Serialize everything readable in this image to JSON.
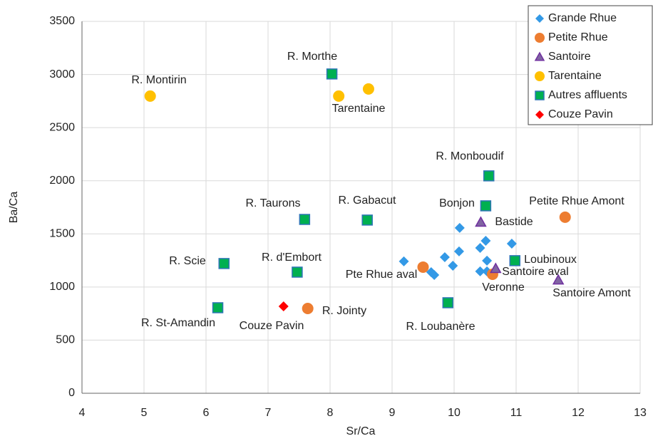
{
  "chart_data": {
    "type": "scatter",
    "x_label": "Sr/Ca",
    "y_label": "Ba/Ca",
    "xlim": [
      4,
      13
    ],
    "xticks": [
      4,
      5,
      6,
      7,
      8,
      9,
      10,
      11,
      12,
      13
    ],
    "ylim": [
      0,
      3500
    ],
    "yticks": [
      0,
      500,
      1000,
      1500,
      2000,
      2500,
      3000,
      3500
    ],
    "grid": true,
    "legend": "top-right",
    "series": [
      {
        "name": "Grande Rhue",
        "color": "#3399e6",
        "marker": "diamond",
        "x": [
          9.19,
          9.63,
          9.68,
          9.85,
          9.98,
          10.09,
          10.08,
          10.42,
          10.51,
          10.53,
          10.42,
          10.53,
          10.93
        ],
        "values": [
          1241,
          1140,
          1113,
          1281,
          1200,
          1556,
          1335,
          1368,
          1435,
          1248,
          1147,
          1147,
          1408
        ]
      },
      {
        "name": "Petite Rhue",
        "color": "#ed7d31",
        "marker": "circle",
        "x": [
          9.5,
          10.62,
          11.79,
          7.64
        ],
        "values": [
          1187,
          1120,
          1657,
          798
        ]
      },
      {
        "name": "Santoire",
        "color": "#8064a2",
        "marker": "triangle",
        "x": [
          10.43,
          10.67,
          11.68
        ],
        "values": [
          1610,
          1174,
          1066
        ]
      },
      {
        "name": "Tarentaine",
        "color": "#ffc000",
        "marker": "circle",
        "x": [
          5.1,
          8.14,
          8.62
        ],
        "values": [
          2797,
          2797,
          2864
        ]
      },
      {
        "name": "Autres affluents",
        "color": "#00b050",
        "marker": "square",
        "x": [
          8.03,
          10.56,
          10.51,
          8.6,
          7.59,
          6.29,
          7.47,
          6.19,
          9.9,
          10.98
        ],
        "values": [
          3005,
          2046,
          1764,
          1630,
          1636,
          1221,
          1140,
          805,
          852,
          1248
        ]
      },
      {
        "name": "Couze Pavin",
        "color": "#ff0000",
        "marker": "diamond",
        "x": [
          7.25
        ],
        "values": [
          818
        ]
      }
    ],
    "annotations": [
      "R. Morthe",
      "R. Montirin",
      "Tarentaine",
      "R. Monboudif",
      "Bonjon",
      "Petite Rhue Amont",
      "Bastide",
      "R. Taurons",
      "R. Gabacut",
      "Loubinoux",
      "R. Scie",
      "R. d'Embort",
      "Pte Rhue aval",
      "Santoire aval",
      "Veronne",
      "Santoire Amont",
      "R. St-Amandin",
      "Couze Pavin",
      "R. Jointy",
      "R. Loubanère"
    ]
  }
}
